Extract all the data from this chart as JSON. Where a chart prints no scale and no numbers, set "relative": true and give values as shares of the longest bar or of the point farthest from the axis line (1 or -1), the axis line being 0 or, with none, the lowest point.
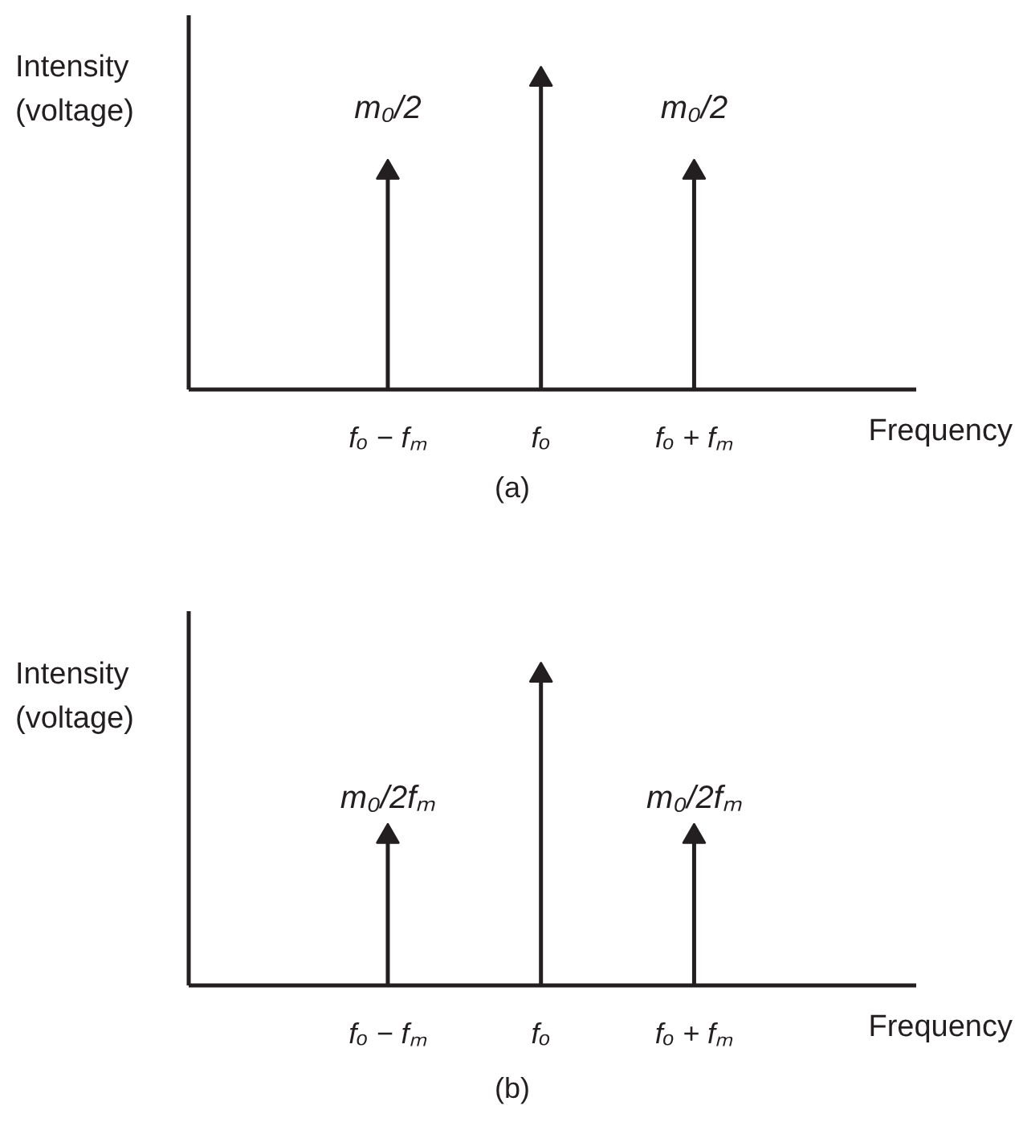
{
  "chart_data": [
    {
      "type": "lollipop",
      "title": "(a)",
      "xlabel": "Frequency",
      "ylabel": "Intensity (voltage)",
      "categories": [
        "fₒ − fₘ",
        "fₒ",
        "fₒ + fₘ"
      ],
      "values": [
        0.7,
        1,
        0.7
      ],
      "relative": true,
      "color": "#231f20",
      "marker": "triangle",
      "annotations": [
        {
          "text": "m₀/2",
          "x": "fₒ − fₘ",
          "y": 0.7
        },
        {
          "text": "m₀/2",
          "x": "fₒ + fₘ",
          "y": 0.7
        }
      ]
    },
    {
      "type": "lollipop",
      "title": "(b)",
      "xlabel": "Frequency",
      "ylabel": "Intensity (voltage)",
      "categories": [
        "fₒ − fₘ",
        "fₒ",
        "fₒ + fₘ"
      ],
      "values": [
        0.48,
        1,
        0.48
      ],
      "relative": true,
      "color": "#231f20",
      "marker": "triangle",
      "annotations": [
        {
          "text": "m₀/2fₘ",
          "x": "fₒ − fₘ",
          "y": 0.48
        },
        {
          "text": "m₀/2fₘ",
          "x": "fₒ + fₘ",
          "y": 0.48
        }
      ]
    }
  ]
}
